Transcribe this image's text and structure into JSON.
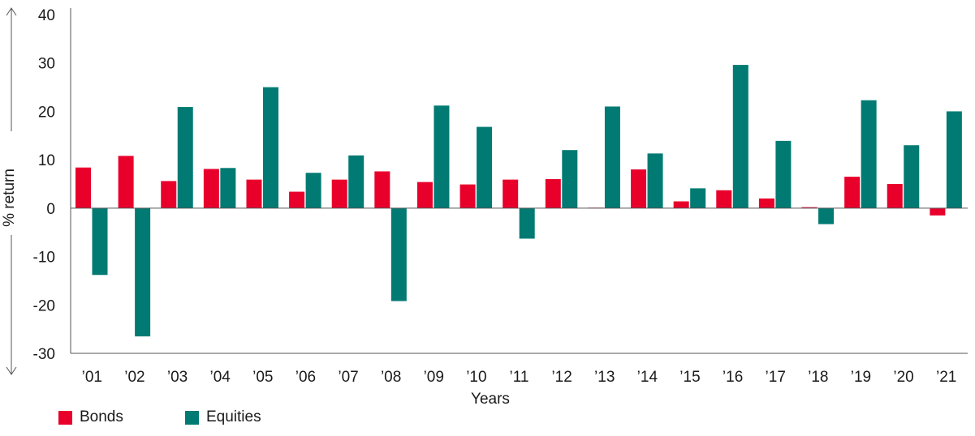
{
  "chart_data": {
    "type": "bar",
    "title": "",
    "xlabel": "Years",
    "ylabel": "% return",
    "ylim": [
      -30,
      40
    ],
    "yticks": [
      40,
      30,
      20,
      10,
      0,
      -10,
      -20,
      -30
    ],
    "categories": [
      "’01",
      "’02",
      "’03",
      "’04",
      "’05",
      "’06",
      "’07",
      "’08",
      "’09",
      "’10",
      "’11",
      "’12",
      "’13",
      "’14",
      "’15",
      "’16",
      "’17",
      "’18",
      "’19",
      "’20",
      "’21"
    ],
    "series": [
      {
        "name": "Bonds",
        "color": "#e8002b",
        "values": [
          8.4,
          10.8,
          5.6,
          8.1,
          5.9,
          3.4,
          5.9,
          7.6,
          5.4,
          4.9,
          5.9,
          6.0,
          0.1,
          8.0,
          1.4,
          3.7,
          2.0,
          0.2,
          6.5,
          5.0,
          -1.5
        ]
      },
      {
        "name": "Equities",
        "color": "#007a72",
        "values": [
          -13.8,
          -26.5,
          20.9,
          8.3,
          25.0,
          7.3,
          10.9,
          -19.2,
          21.2,
          16.8,
          -6.3,
          12.0,
          21.0,
          11.3,
          4.1,
          29.6,
          13.9,
          -3.3,
          22.3,
          13.0,
          20.0
        ]
      }
    ],
    "grid": false,
    "legend_position": "bottom-left"
  }
}
